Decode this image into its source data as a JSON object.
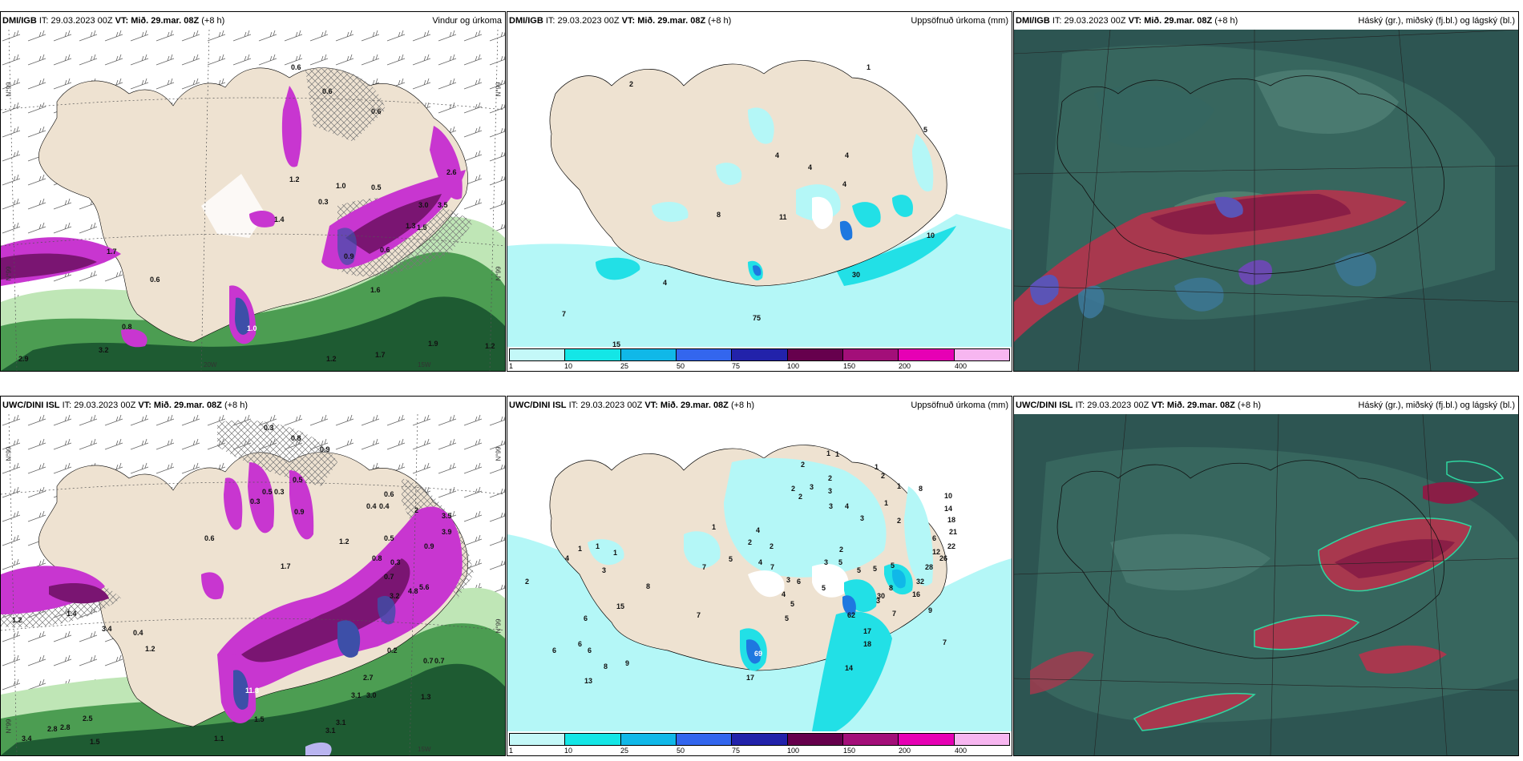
{
  "panels": [
    {
      "model": "DMI/IGB",
      "run_prefix": "IT: 29.03.2023 00Z",
      "vt_label": "VT: Mið. 29.mar. 08Z",
      "lead": "(+8 h)",
      "title": "Vindur og úrkoma",
      "map_labels": [
        "0.6",
        "0.6",
        "0.6",
        "1.2",
        "0.3",
        "1.0",
        "0.5",
        "3.0",
        "3.5",
        "2.6",
        "0.6",
        "1.4",
        "1.3",
        "1.7",
        "0.9",
        "1.6",
        "1.5",
        "1.0",
        "0.8",
        "3.2",
        "2.9",
        "1.2",
        "1.7",
        "1.9",
        "1.2",
        "0.6"
      ],
      "axis_labels": [
        "N°99",
        "N°99",
        "20W",
        "N°99",
        "15W",
        "N°99"
      ]
    },
    {
      "model": "DMI/IGB",
      "run_prefix": "IT: 29.03.2023 00Z",
      "vt_label": "VT: Mið. 29.mar. 08Z",
      "lead": "(+8 h)",
      "title": "Uppsöfnuð úrkoma (mm)",
      "map_labels": [
        "1",
        "2",
        "4",
        "4",
        "4",
        "4",
        "5",
        "11",
        "8",
        "10",
        "4",
        "7",
        "15",
        "75",
        "30"
      ],
      "legend_ticks": [
        "1",
        "10",
        "25",
        "50",
        "75",
        "100",
        "150",
        "200",
        "400"
      ]
    },
    {
      "model": "DMI/IGB",
      "run_prefix": "IT: 29.03.2023 00Z",
      "vt_label": "VT: Mið. 29.mar. 08Z",
      "lead": "(+8 h)",
      "title": "Háský (gr.), miðský (fj.bl.) og lágský (bl.)"
    },
    {
      "model": "UWC/DINI ISL",
      "run_prefix": "IT: 29.03.2023 00Z",
      "vt_label": "VT: Mið. 29.mar. 08Z",
      "lead": "(+8 h)",
      "title": "",
      "map_labels": [
        "0.3",
        "0.8",
        "0.9",
        "0.5",
        "0.3",
        "0.5",
        "0.3",
        "0.9",
        "0.6",
        "0.4",
        "0.4",
        "2",
        "3.5",
        "3.9",
        "0.6",
        "1.2",
        "0.5",
        "0.8",
        "0.3",
        "1.7",
        "0.7",
        "0.9",
        "1.2",
        "3.2",
        "5.6",
        "4.8",
        "1.4",
        "3.4",
        "0.4",
        "1.2",
        "0.2",
        "0.7",
        "0.7",
        "2.7",
        "3.1",
        "3.0",
        "1.3",
        "11.3",
        "1.5",
        "3.4",
        "2.8",
        "2.8",
        "2.5",
        "3.1",
        "1.1",
        "3.1",
        "1.5"
      ],
      "axis_labels": [
        "N°99",
        "N°99",
        "N°99",
        "15W",
        "N°99"
      ]
    },
    {
      "model": "UWC/DINI ISL",
      "run_prefix": "IT: 29.03.2023 00Z",
      "vt_label": "VT: Mið. 29.mar. 08Z",
      "lead": "(+8 h)",
      "title": "Uppsöfnuð úrkoma (mm)",
      "map_labels": [
        "1",
        "2",
        "2",
        "3",
        "2",
        "3",
        "2",
        "1",
        "1",
        "2",
        "4",
        "3",
        "2",
        "3",
        "1",
        "1",
        "8",
        "6",
        "10",
        "14",
        "18",
        "12",
        "21",
        "22",
        "26",
        "28",
        "32",
        "16",
        "9",
        "8",
        "5",
        "5",
        "5",
        "4",
        "3",
        "5",
        "2",
        "4",
        "7",
        "7",
        "7",
        "5",
        "4",
        "5",
        "6",
        "3",
        "7",
        "8",
        "6",
        "6",
        "9",
        "6",
        "8",
        "13",
        "17",
        "18",
        "14",
        "17",
        "7",
        "69",
        "30",
        "1",
        "2",
        "1",
        "4",
        "1",
        "1",
        "3",
        "2",
        "5",
        "2",
        "5",
        "3",
        "15",
        "6",
        "62"
      ],
      "legend_ticks": [
        "1",
        "10",
        "25",
        "50",
        "75",
        "100",
        "150",
        "200",
        "400"
      ]
    },
    {
      "model": "UWC/DINI ISL",
      "run_prefix": "IT: 29.03.2023 00Z",
      "vt_label": "VT: Mið. 29.mar. 08Z",
      "lead": "(+8 h)",
      "title": "Háský (gr.), miðský (fj.bl.) og lágský (bl.)"
    }
  ],
  "legend_colors": [
    "#c4f8f8",
    "#14e6e6",
    "#10b8e8",
    "#3366ee",
    "#2222aa",
    "#66004d",
    "#a30f79",
    "#e600b4",
    "#f7b6f0"
  ],
  "colors": {
    "land": "#eee2d1",
    "precip_light": "#b4f7f7",
    "precip_mid": "#22e0e6",
    "precip_blue": "#1e78e0",
    "magenta": "#c836d0",
    "purple": "#7a1572",
    "green_dark": "#1e5b32",
    "green_mid": "#4c9d52",
    "green_light": "#bfe6b6",
    "cloud_bg": "#2d5552"
  }
}
